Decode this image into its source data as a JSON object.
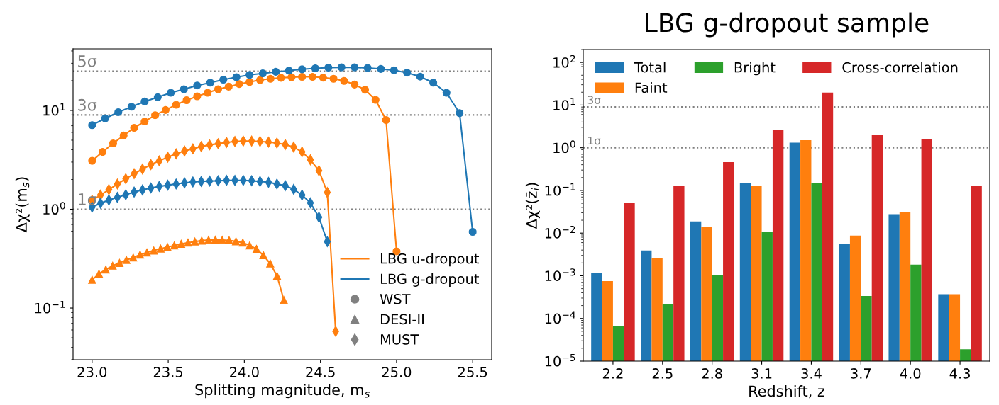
{
  "chart_data": [
    {
      "type": "line",
      "xlabel": "Splitting magnitude, m$_{s}$",
      "ylabel": "Δχ²(m$_{s}$)",
      "log": "y",
      "legend": "bottom right",
      "grid": false,
      "xlim": [
        22.875,
        25.625
      ],
      "xticks": [
        {
          "value": 23.0,
          "label": "23.0"
        },
        {
          "value": 23.5,
          "label": "23.5"
        },
        {
          "value": 24.0,
          "label": "24.0"
        },
        {
          "value": 24.5,
          "label": "24.5"
        },
        {
          "value": 25.0,
          "label": "25.0"
        },
        {
          "value": 25.5,
          "label": "25.5"
        }
      ],
      "ylim": [
        0.03,
        42
      ],
      "yticks": [
        {
          "value": 0.1,
          "label": "10$^{−1}$"
        },
        {
          "value": 1,
          "label": "10$^{0}$"
        },
        {
          "value": 10,
          "label": "10$^{1}$"
        }
      ],
      "ref_lines": [
        {
          "axis": "y",
          "value": 25,
          "label": "5σ",
          "color": "#808080",
          "line_style": "dotted"
        },
        {
          "axis": "y",
          "value": 9,
          "label": "3σ",
          "color": "#808080",
          "line_style": "dotted"
        },
        {
          "axis": "y",
          "value": 1,
          "label": "1σ",
          "color": "#808080",
          "line_style": "dotted"
        }
      ],
      "annotations": [
        "WST",
        "DESI-II",
        "MUST"
      ],
      "series": [
        {
          "name": "LBG u-dropout",
          "color": "#ff7f0e",
          "marker": "circle",
          "x": [
            23.0,
            23.069,
            23.138,
            23.207,
            23.276,
            23.345,
            23.414,
            23.483,
            23.552,
            23.621,
            23.69,
            23.759,
            23.828,
            23.897,
            23.966,
            24.034,
            24.103,
            24.172,
            24.241,
            24.31,
            24.379,
            24.448,
            24.517,
            24.586,
            24.655,
            24.724,
            24.793,
            24.862,
            24.931,
            25.0
          ],
          "values": [
            3.09,
            3.8,
            4.64,
            5.58,
            6.67,
            7.73,
            8.95,
            10.1,
            11.4,
            12.7,
            13.9,
            15.1,
            16.4,
            17.4,
            18.5,
            19.4,
            20.3,
            20.9,
            21.4,
            21.7,
            21.9,
            21.9,
            21.5,
            20.9,
            19.9,
            18.3,
            16.2,
            12.8,
            8.0,
            0.375
          ]
        },
        {
          "name": "LBG g-dropout",
          "color": "#1f77b4",
          "marker": "circle",
          "x": [
            23.0,
            23.086,
            23.172,
            23.259,
            23.345,
            23.431,
            23.517,
            23.603,
            23.69,
            23.776,
            23.862,
            23.948,
            24.034,
            24.121,
            24.207,
            24.293,
            24.379,
            24.466,
            24.552,
            24.638,
            24.724,
            24.81,
            24.897,
            24.983,
            25.069,
            25.155,
            25.241,
            25.328,
            25.414,
            25.5
          ],
          "values": [
            7.1,
            8.3,
            9.6,
            10.9,
            12.3,
            13.6,
            15.1,
            16.4,
            17.9,
            19.1,
            20.5,
            21.7,
            22.9,
            23.7,
            24.6,
            25.3,
            26.1,
            26.7,
            27.1,
            27.3,
            27.3,
            26.9,
            26.3,
            25.5,
            24.1,
            22.0,
            19.1,
            15.1,
            9.4,
            0.59
          ]
        },
        {
          "color": "#ff7f0e",
          "marker": "triangle",
          "x": [
            23.0,
            23.045,
            23.09,
            23.135,
            23.18,
            23.225,
            23.27,
            23.315,
            23.36,
            23.405,
            23.45,
            23.495,
            23.54,
            23.585,
            23.63,
            23.675,
            23.72,
            23.765,
            23.81,
            23.855,
            23.9,
            23.945,
            23.99,
            24.035,
            24.08,
            24.125,
            24.17,
            24.215,
            24.26
          ],
          "values": [
            0.193,
            0.222,
            0.245,
            0.268,
            0.286,
            0.306,
            0.324,
            0.347,
            0.365,
            0.382,
            0.399,
            0.414,
            0.43,
            0.446,
            0.459,
            0.47,
            0.481,
            0.488,
            0.491,
            0.488,
            0.484,
            0.473,
            0.459,
            0.43,
            0.396,
            0.342,
            0.282,
            0.211,
            0.12
          ]
        },
        {
          "color": "#ff7f0e",
          "marker": "diamond",
          "x": [
            23.0,
            23.055,
            23.11,
            23.166,
            23.221,
            23.276,
            23.331,
            23.386,
            23.441,
            23.497,
            23.552,
            23.607,
            23.662,
            23.717,
            23.772,
            23.828,
            23.883,
            23.938,
            23.993,
            24.048,
            24.103,
            24.159,
            24.214,
            24.269,
            24.324,
            24.379,
            24.434,
            24.49,
            24.545,
            24.6
          ],
          "values": [
            1.23,
            1.39,
            1.58,
            1.8,
            2.03,
            2.29,
            2.55,
            2.83,
            3.09,
            3.36,
            3.64,
            3.89,
            4.09,
            4.31,
            4.48,
            4.61,
            4.74,
            4.85,
            4.89,
            4.89,
            4.85,
            4.78,
            4.68,
            4.51,
            4.25,
            3.8,
            3.16,
            2.46,
            1.48,
            0.058
          ]
        },
        {
          "color": "#1f77b4",
          "marker": "diamond",
          "x": [
            23.0,
            23.055,
            23.11,
            23.166,
            23.221,
            23.276,
            23.331,
            23.386,
            23.441,
            23.497,
            23.552,
            23.607,
            23.662,
            23.717,
            23.772,
            23.828,
            23.883,
            23.938,
            23.993,
            24.048,
            24.103,
            24.159,
            24.214,
            24.269,
            24.324,
            24.379,
            24.434,
            24.49,
            24.545
          ],
          "values": [
            1.05,
            1.15,
            1.24,
            1.32,
            1.4,
            1.49,
            1.57,
            1.64,
            1.7,
            1.75,
            1.8,
            1.85,
            1.89,
            1.91,
            1.93,
            1.94,
            1.96,
            1.96,
            1.96,
            1.94,
            1.91,
            1.87,
            1.8,
            1.73,
            1.59,
            1.39,
            1.16,
            0.83,
            0.47
          ]
        }
      ]
    },
    {
      "type": "bar",
      "title": "LBG g-dropout sample",
      "xlabel": "Redshift, z",
      "ylabel": "Δχ²(z̄$_{i}$)",
      "log": "y",
      "legend": "top left",
      "grid": false,
      "categories": [
        "2.2",
        "2.5",
        "2.8",
        "3.1",
        "3.4",
        "3.7",
        "4.0",
        "4.3"
      ],
      "ylim": [
        1e-05,
        200
      ],
      "yticks": [
        {
          "value": 1e-05,
          "label": "10$^{−5}$"
        },
        {
          "value": 0.0001,
          "label": "10$^{−4}$"
        },
        {
          "value": 0.001,
          "label": "10$^{−3}$"
        },
        {
          "value": 0.01,
          "label": "10$^{−2}$"
        },
        {
          "value": 0.1,
          "label": "10$^{−1}$"
        },
        {
          "value": 1,
          "label": "10$^{0}$"
        },
        {
          "value": 10,
          "label": "10$^{1}$"
        },
        {
          "value": 100,
          "label": "10$^{2}$"
        }
      ],
      "ref_lines": [
        {
          "axis": "y",
          "value": 9,
          "label": "3σ",
          "color": "#808080",
          "line_style": "dotted"
        },
        {
          "axis": "y",
          "value": 1,
          "label": "1σ",
          "color": "#808080",
          "line_style": "dotted"
        }
      ],
      "series": [
        {
          "name": "Total",
          "color": "#1f77b4",
          "values": [
            0.00119,
            0.0039,
            0.0187,
            0.152,
            1.31,
            0.0055,
            0.0277,
            0.00037
          ]
        },
        {
          "name": "Faint",
          "color": "#ff7f0e",
          "values": [
            0.00075,
            0.00258,
            0.0138,
            0.13,
            1.51,
            0.00875,
            0.0308,
            0.00037
          ]
        },
        {
          "name": "Bright",
          "color": "#2ca02c",
          "values": [
            6.5e-05,
            0.000212,
            0.00106,
            0.0106,
            0.152,
            0.000336,
            0.00182,
            1.9e-05
          ]
        },
        {
          "name": "Cross-correlation",
          "color": "#d62728",
          "values": [
            0.0502,
            0.126,
            0.46,
            2.67,
            19.6,
            2.04,
            1.58,
            0.126
          ]
        }
      ]
    }
  ]
}
